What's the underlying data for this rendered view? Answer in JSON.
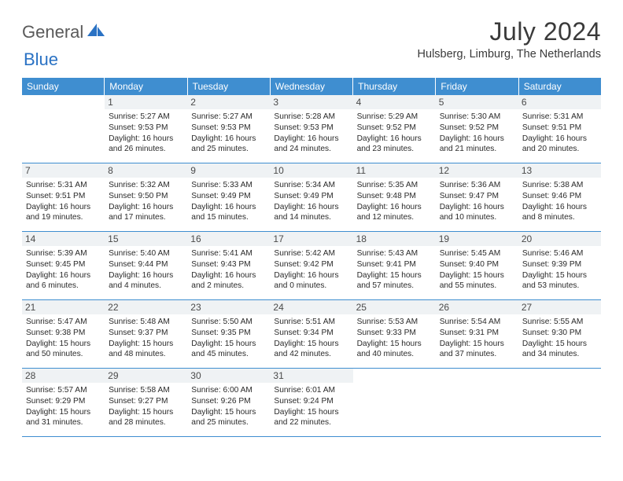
{
  "brand": {
    "word1": "General",
    "word2": "Blue"
  },
  "title": "July 2024",
  "location": "Hulsberg, Limburg, The Netherlands",
  "colors": {
    "header_bar": "#3f8ed0",
    "daynum_bg": "#eff2f4",
    "rule": "#3f8ed0",
    "logo_gray": "#5a5a5a",
    "logo_blue": "#2a72c4"
  },
  "dow": [
    "Sunday",
    "Monday",
    "Tuesday",
    "Wednesday",
    "Thursday",
    "Friday",
    "Saturday"
  ],
  "weeks": [
    [
      {
        "n": "",
        "lines": []
      },
      {
        "n": "1",
        "lines": [
          "Sunrise: 5:27 AM",
          "Sunset: 9:53 PM",
          "Daylight: 16 hours and 26 minutes."
        ]
      },
      {
        "n": "2",
        "lines": [
          "Sunrise: 5:27 AM",
          "Sunset: 9:53 PM",
          "Daylight: 16 hours and 25 minutes."
        ]
      },
      {
        "n": "3",
        "lines": [
          "Sunrise: 5:28 AM",
          "Sunset: 9:53 PM",
          "Daylight: 16 hours and 24 minutes."
        ]
      },
      {
        "n": "4",
        "lines": [
          "Sunrise: 5:29 AM",
          "Sunset: 9:52 PM",
          "Daylight: 16 hours and 23 minutes."
        ]
      },
      {
        "n": "5",
        "lines": [
          "Sunrise: 5:30 AM",
          "Sunset: 9:52 PM",
          "Daylight: 16 hours and 21 minutes."
        ]
      },
      {
        "n": "6",
        "lines": [
          "Sunrise: 5:31 AM",
          "Sunset: 9:51 PM",
          "Daylight: 16 hours and 20 minutes."
        ]
      }
    ],
    [
      {
        "n": "7",
        "lines": [
          "Sunrise: 5:31 AM",
          "Sunset: 9:51 PM",
          "Daylight: 16 hours and 19 minutes."
        ]
      },
      {
        "n": "8",
        "lines": [
          "Sunrise: 5:32 AM",
          "Sunset: 9:50 PM",
          "Daylight: 16 hours and 17 minutes."
        ]
      },
      {
        "n": "9",
        "lines": [
          "Sunrise: 5:33 AM",
          "Sunset: 9:49 PM",
          "Daylight: 16 hours and 15 minutes."
        ]
      },
      {
        "n": "10",
        "lines": [
          "Sunrise: 5:34 AM",
          "Sunset: 9:49 PM",
          "Daylight: 16 hours and 14 minutes."
        ]
      },
      {
        "n": "11",
        "lines": [
          "Sunrise: 5:35 AM",
          "Sunset: 9:48 PM",
          "Daylight: 16 hours and 12 minutes."
        ]
      },
      {
        "n": "12",
        "lines": [
          "Sunrise: 5:36 AM",
          "Sunset: 9:47 PM",
          "Daylight: 16 hours and 10 minutes."
        ]
      },
      {
        "n": "13",
        "lines": [
          "Sunrise: 5:38 AM",
          "Sunset: 9:46 PM",
          "Daylight: 16 hours and 8 minutes."
        ]
      }
    ],
    [
      {
        "n": "14",
        "lines": [
          "Sunrise: 5:39 AM",
          "Sunset: 9:45 PM",
          "Daylight: 16 hours and 6 minutes."
        ]
      },
      {
        "n": "15",
        "lines": [
          "Sunrise: 5:40 AM",
          "Sunset: 9:44 PM",
          "Daylight: 16 hours and 4 minutes."
        ]
      },
      {
        "n": "16",
        "lines": [
          "Sunrise: 5:41 AM",
          "Sunset: 9:43 PM",
          "Daylight: 16 hours and 2 minutes."
        ]
      },
      {
        "n": "17",
        "lines": [
          "Sunrise: 5:42 AM",
          "Sunset: 9:42 PM",
          "Daylight: 16 hours and 0 minutes."
        ]
      },
      {
        "n": "18",
        "lines": [
          "Sunrise: 5:43 AM",
          "Sunset: 9:41 PM",
          "Daylight: 15 hours and 57 minutes."
        ]
      },
      {
        "n": "19",
        "lines": [
          "Sunrise: 5:45 AM",
          "Sunset: 9:40 PM",
          "Daylight: 15 hours and 55 minutes."
        ]
      },
      {
        "n": "20",
        "lines": [
          "Sunrise: 5:46 AM",
          "Sunset: 9:39 PM",
          "Daylight: 15 hours and 53 minutes."
        ]
      }
    ],
    [
      {
        "n": "21",
        "lines": [
          "Sunrise: 5:47 AM",
          "Sunset: 9:38 PM",
          "Daylight: 15 hours and 50 minutes."
        ]
      },
      {
        "n": "22",
        "lines": [
          "Sunrise: 5:48 AM",
          "Sunset: 9:37 PM",
          "Daylight: 15 hours and 48 minutes."
        ]
      },
      {
        "n": "23",
        "lines": [
          "Sunrise: 5:50 AM",
          "Sunset: 9:35 PM",
          "Daylight: 15 hours and 45 minutes."
        ]
      },
      {
        "n": "24",
        "lines": [
          "Sunrise: 5:51 AM",
          "Sunset: 9:34 PM",
          "Daylight: 15 hours and 42 minutes."
        ]
      },
      {
        "n": "25",
        "lines": [
          "Sunrise: 5:53 AM",
          "Sunset: 9:33 PM",
          "Daylight: 15 hours and 40 minutes."
        ]
      },
      {
        "n": "26",
        "lines": [
          "Sunrise: 5:54 AM",
          "Sunset: 9:31 PM",
          "Daylight: 15 hours and 37 minutes."
        ]
      },
      {
        "n": "27",
        "lines": [
          "Sunrise: 5:55 AM",
          "Sunset: 9:30 PM",
          "Daylight: 15 hours and 34 minutes."
        ]
      }
    ],
    [
      {
        "n": "28",
        "lines": [
          "Sunrise: 5:57 AM",
          "Sunset: 9:29 PM",
          "Daylight: 15 hours and 31 minutes."
        ]
      },
      {
        "n": "29",
        "lines": [
          "Sunrise: 5:58 AM",
          "Sunset: 9:27 PM",
          "Daylight: 15 hours and 28 minutes."
        ]
      },
      {
        "n": "30",
        "lines": [
          "Sunrise: 6:00 AM",
          "Sunset: 9:26 PM",
          "Daylight: 15 hours and 25 minutes."
        ]
      },
      {
        "n": "31",
        "lines": [
          "Sunrise: 6:01 AM",
          "Sunset: 9:24 PM",
          "Daylight: 15 hours and 22 minutes."
        ]
      },
      {
        "n": "",
        "lines": []
      },
      {
        "n": "",
        "lines": []
      },
      {
        "n": "",
        "lines": []
      }
    ]
  ]
}
